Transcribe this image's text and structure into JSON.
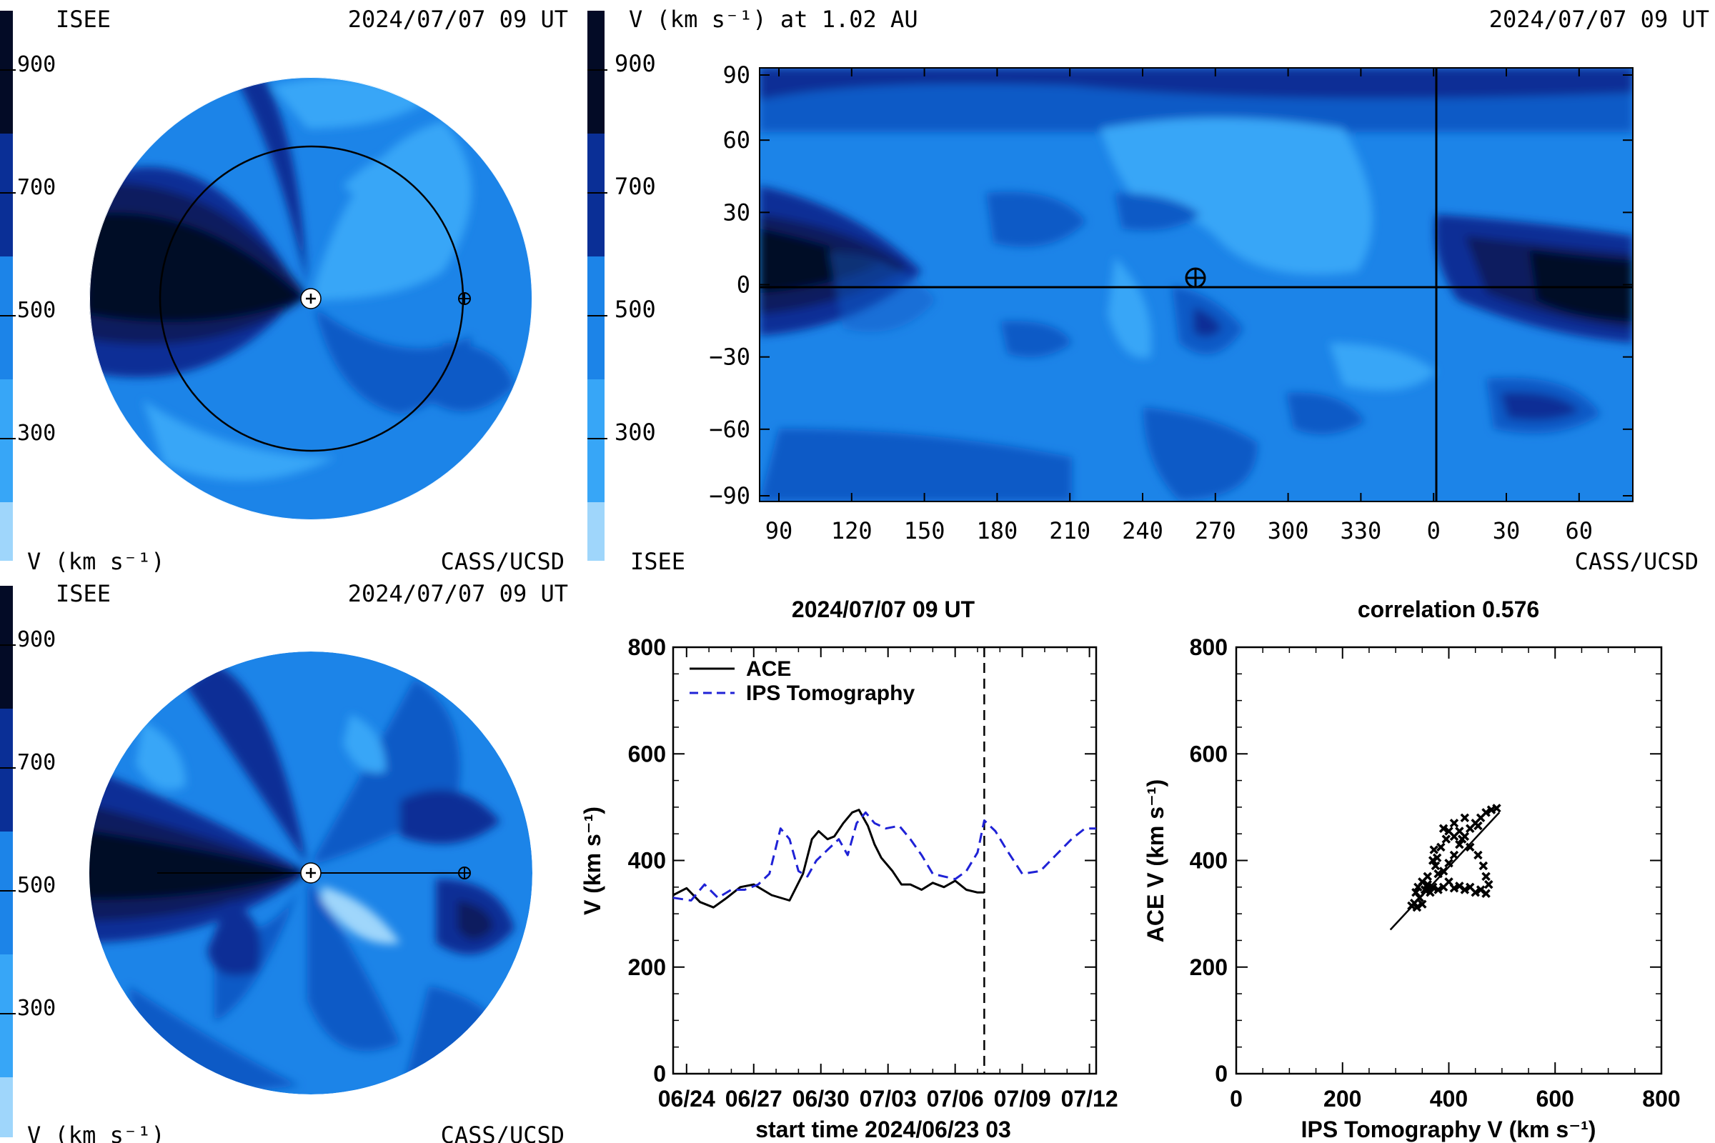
{
  "colors": {
    "bin1": "#9fd6fb",
    "bin2": "#37a6f7",
    "bin3": "#1c84e8",
    "bin4": "#0f5ac6",
    "bin5": "#0a2f96",
    "bin6": "#071a5e",
    "bin7": "#030b26",
    "line_ace": "#000000",
    "line_ips": "#1f22d6"
  },
  "panels": {
    "top_left": {
      "label_left": "ISEE",
      "label_right": "2024/07/07 09 UT",
      "footer_left": "V (km s⁻¹)",
      "footer_right": "CASS/UCSD",
      "colorbar_ticks": [
        "900",
        "700",
        "500",
        "300"
      ]
    },
    "top_right": {
      "label_left": "V (km s⁻¹) at 1.02 AU",
      "label_right": "2024/07/07 09 UT",
      "footer_left": "ISEE",
      "footer_right": "CASS/UCSD",
      "colorbar_ticks": [
        "900",
        "700",
        "500",
        "300"
      ],
      "x_ticks": [
        "90",
        "120",
        "150",
        "180",
        "210",
        "240",
        "270",
        "300",
        "330",
        "0",
        "30",
        "60"
      ],
      "y_ticks": [
        "90",
        "60",
        "30",
        "0",
        "−30",
        "−60",
        "−90"
      ],
      "earth_symbol": "⊕"
    },
    "bottom_left": {
      "label_left": "ISEE",
      "label_right": "2024/07/07 09 UT",
      "footer_left": "V (km s⁻¹)",
      "footer_right": "CASS/UCSD",
      "colorbar_ticks": [
        "900",
        "700",
        "500",
        "300"
      ]
    }
  },
  "chart_data": [
    {
      "type": "line",
      "title": "2024/07/07 09 UT",
      "xlabel": "start time 2024/06/23 03",
      "ylabel": "V (km s⁻¹)",
      "x_ticks": [
        "06/24",
        "06/27",
        "06/30",
        "07/03",
        "07/06",
        "07/09",
        "07/12"
      ],
      "y_ticks": [
        "0",
        "200",
        "400",
        "600",
        "800"
      ],
      "ylim": [
        0,
        800
      ],
      "xlim_days": [
        0.4,
        19.3
      ],
      "now_marker_day": 14.3,
      "legend_position": "top-left",
      "series": [
        {
          "name": "ACE",
          "style": "solid",
          "x": [
            0.4,
            1.0,
            1.6,
            2.2,
            2.8,
            3.4,
            4.0,
            4.8,
            5.6,
            6.2,
            6.6,
            6.9,
            7.3,
            7.6,
            8.0,
            8.4,
            8.7,
            9.1,
            9.4,
            9.7,
            10.2,
            10.6,
            11.0,
            11.5,
            12.0,
            12.5,
            13.0,
            13.5,
            14.0,
            14.3
          ],
          "y": [
            335,
            348,
            322,
            312,
            330,
            350,
            355,
            335,
            325,
            375,
            440,
            455,
            440,
            445,
            470,
            490,
            495,
            465,
            430,
            405,
            380,
            355,
            355,
            345,
            358,
            350,
            362,
            345,
            340,
            340
          ]
        },
        {
          "name": "IPS Tomography",
          "style": "dashed",
          "x": [
            0.4,
            1.2,
            1.8,
            2.4,
            3.0,
            3.6,
            4.2,
            4.7,
            5.2,
            5.6,
            6.0,
            6.4,
            6.8,
            7.3,
            7.8,
            8.2,
            8.6,
            9.0,
            9.4,
            9.9,
            10.5,
            11.0,
            11.5,
            12.0,
            12.5,
            13.0,
            13.5,
            14.0,
            14.3,
            14.8,
            15.3,
            16.0,
            16.8,
            17.5,
            18.2,
            18.8,
            19.3
          ],
          "y": [
            330,
            325,
            355,
            330,
            345,
            345,
            355,
            375,
            460,
            440,
            380,
            370,
            400,
            420,
            440,
            410,
            470,
            490,
            470,
            460,
            465,
            440,
            410,
            375,
            370,
            365,
            380,
            415,
            475,
            455,
            420,
            375,
            380,
            410,
            440,
            460,
            460
          ]
        }
      ]
    },
    {
      "type": "scatter",
      "title": "correlation 0.576",
      "xlabel": "IPS Tomography V (km s⁻¹)",
      "ylabel": "ACE V (km s⁻¹)",
      "x_ticks": [
        "0",
        "200",
        "400",
        "600",
        "800"
      ],
      "y_ticks": [
        "0",
        "200",
        "400",
        "600",
        "800"
      ],
      "xlim": [
        0,
        800
      ],
      "ylim": [
        0,
        800
      ],
      "fit_line": [
        [
          290,
          270
        ],
        [
          495,
          490
        ]
      ],
      "points": [
        [
          330,
          315
        ],
        [
          335,
          320
        ],
        [
          340,
          312
        ],
        [
          350,
          318
        ],
        [
          345,
          330
        ],
        [
          338,
          340
        ],
        [
          342,
          350
        ],
        [
          355,
          345
        ],
        [
          360,
          355
        ],
        [
          350,
          360
        ],
        [
          365,
          340
        ],
        [
          370,
          350
        ],
        [
          380,
          345
        ],
        [
          390,
          350
        ],
        [
          400,
          360
        ],
        [
          410,
          348
        ],
        [
          420,
          352
        ],
        [
          430,
          345
        ],
        [
          440,
          350
        ],
        [
          450,
          340
        ],
        [
          460,
          345
        ],
        [
          470,
          338
        ],
        [
          475,
          355
        ],
        [
          470,
          370
        ],
        [
          465,
          390
        ],
        [
          455,
          410
        ],
        [
          440,
          425
        ],
        [
          425,
          440
        ],
        [
          410,
          445
        ],
        [
          395,
          440
        ],
        [
          385,
          425
        ],
        [
          378,
          405
        ],
        [
          375,
          390
        ],
        [
          380,
          375
        ],
        [
          390,
          380
        ],
        [
          400,
          395
        ],
        [
          410,
          410
        ],
        [
          420,
          430
        ],
        [
          430,
          445
        ],
        [
          440,
          460
        ],
        [
          450,
          470
        ],
        [
          460,
          480
        ],
        [
          470,
          490
        ],
        [
          480,
          495
        ],
        [
          490,
          498
        ],
        [
          455,
          465
        ],
        [
          420,
          455
        ],
        [
          400,
          455
        ],
        [
          360,
          370
        ],
        [
          370,
          400
        ],
        [
          372,
          420
        ],
        [
          390,
          460
        ],
        [
          410,
          470
        ],
        [
          430,
          480
        ]
      ]
    }
  ]
}
